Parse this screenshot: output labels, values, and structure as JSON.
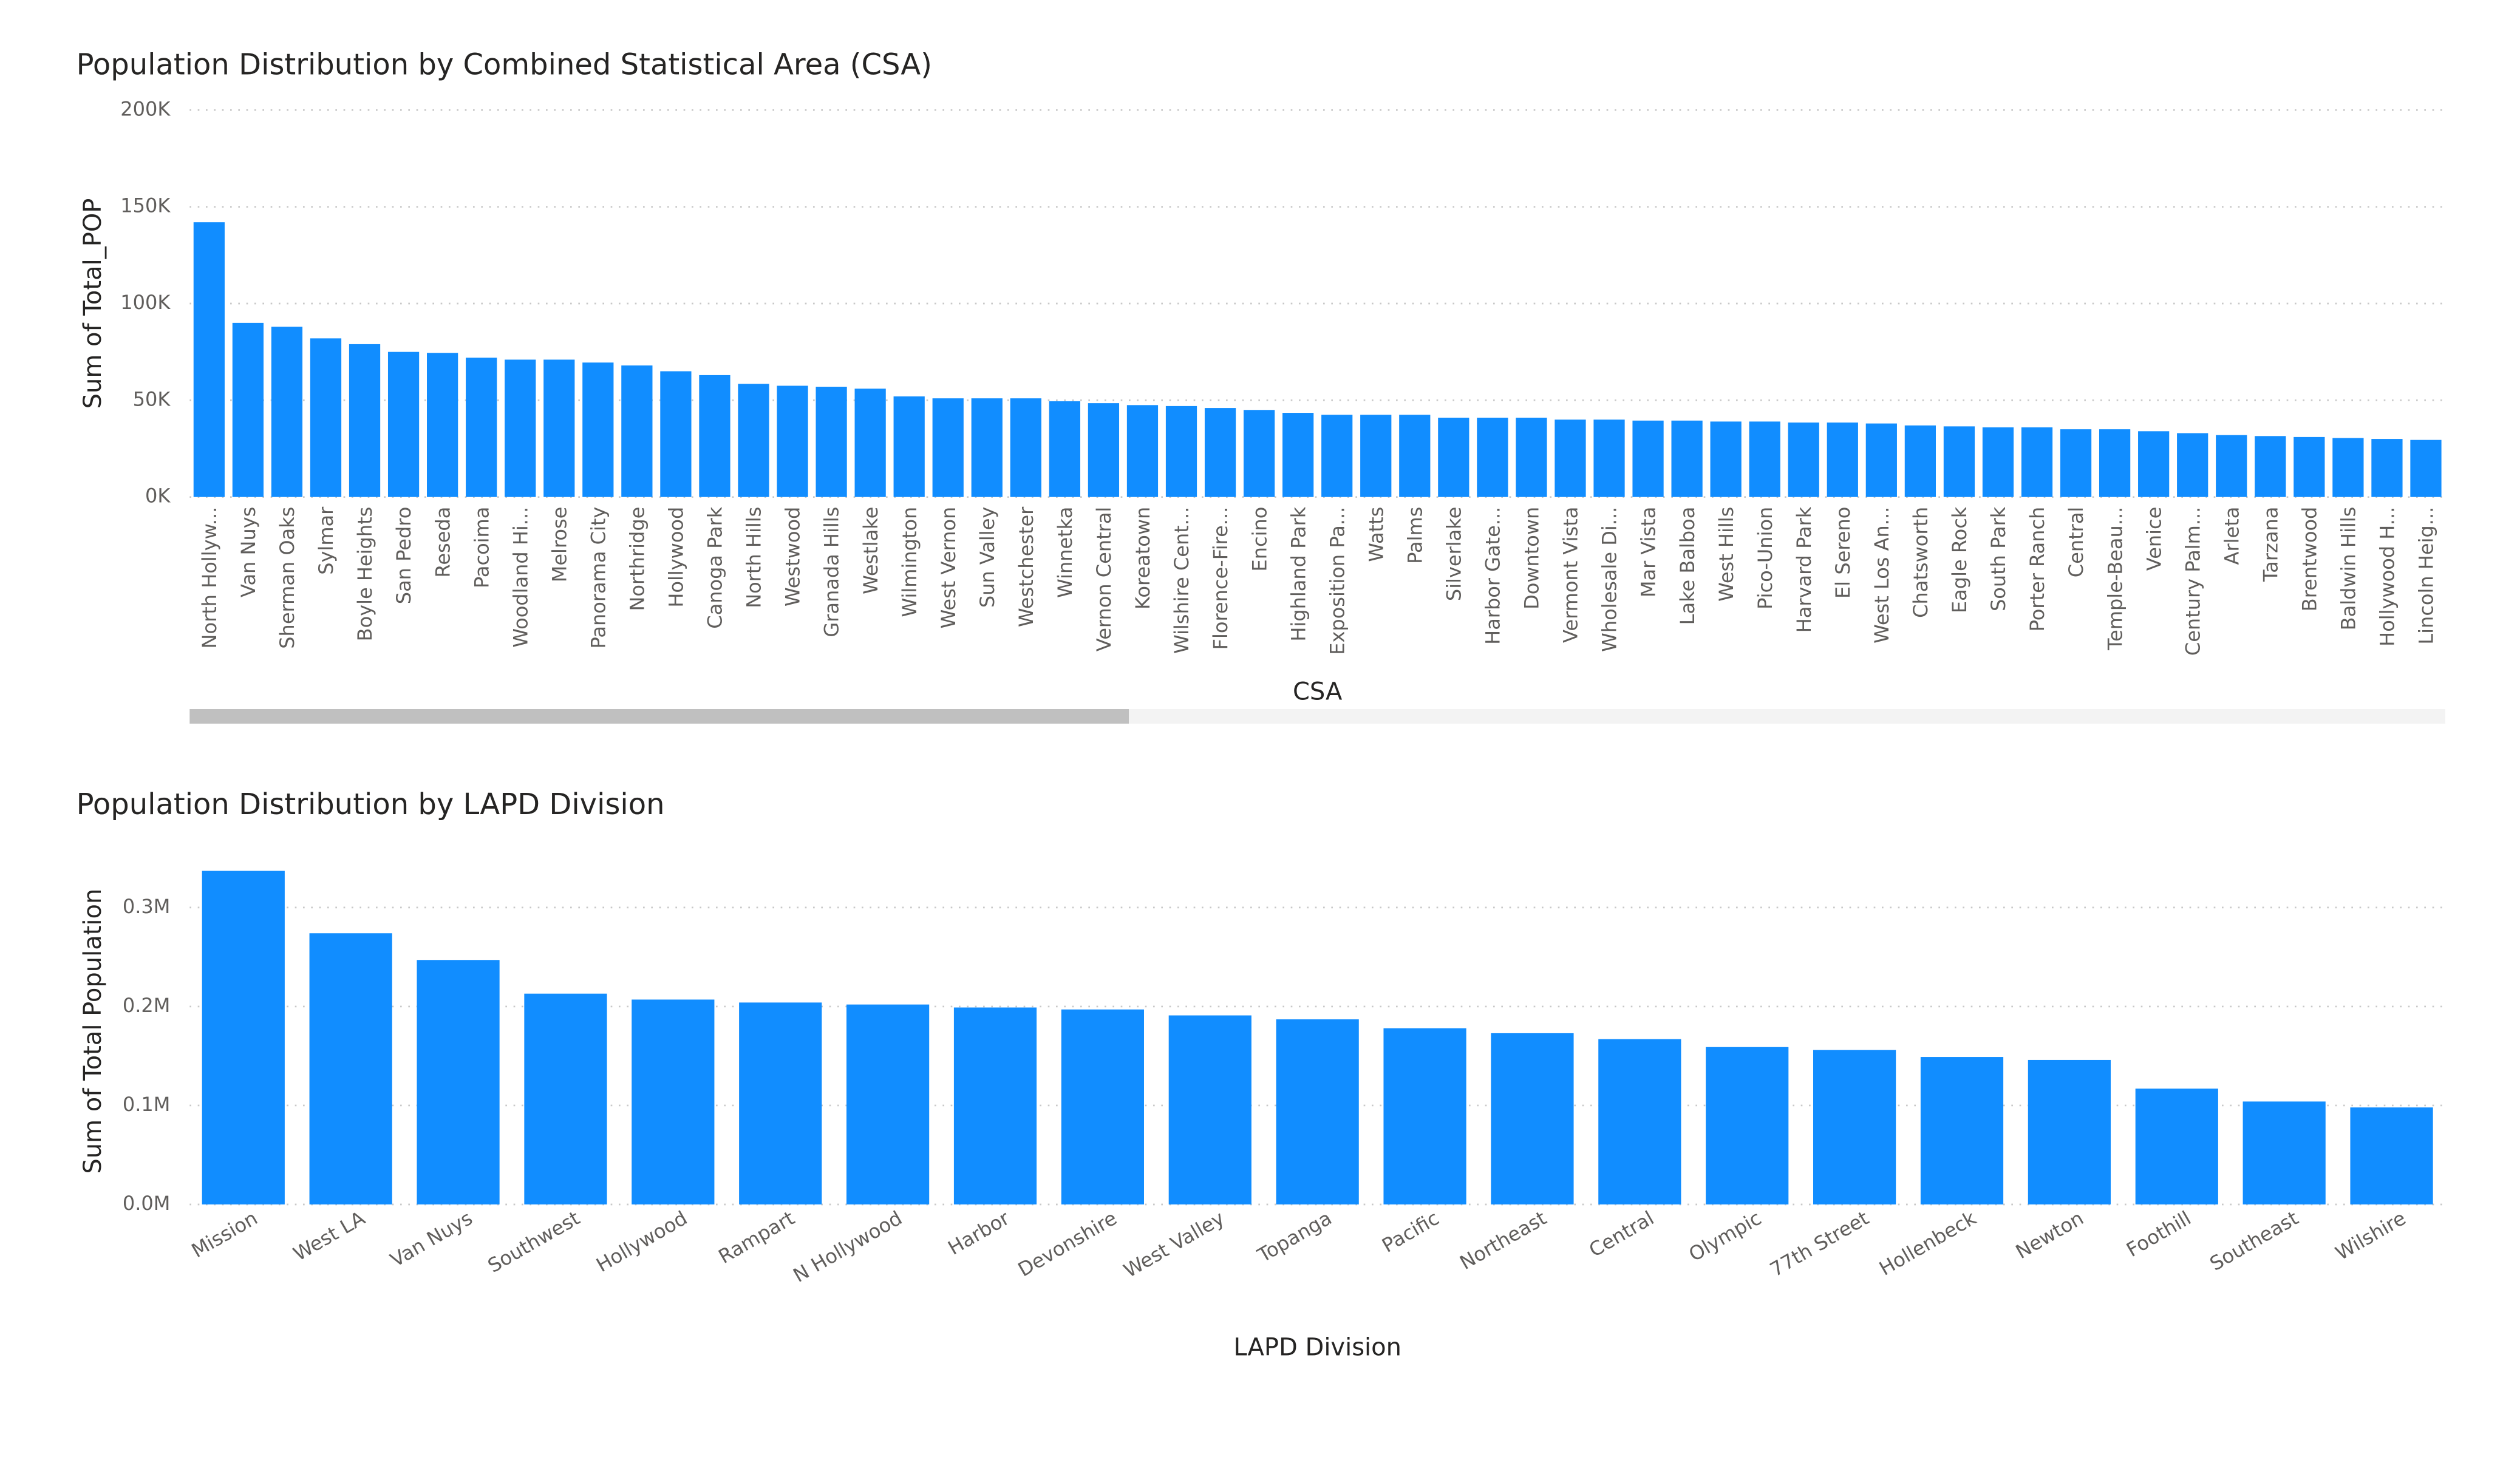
{
  "chart_data": [
    {
      "type": "bar",
      "title": "Population Distribution by Combined Statistical Area (CSA)",
      "x_label": "CSA",
      "y_label": "Sum of Total_POP",
      "color": "#118DFF",
      "grid": true,
      "categories": [
        "North Hollyw...",
        "Van Nuys",
        "Sherman Oaks",
        "Sylmar",
        "Boyle Heights",
        "San Pedro",
        "Reseda",
        "Pacoima",
        "Woodland Hi...",
        "Melrose",
        "Panorama City",
        "Northridge",
        "Hollywood",
        "Canoga Park",
        "North Hills",
        "Westwood",
        "Granada Hills",
        "Westlake",
        "Wilmington",
        "West Vernon",
        "Sun Valley",
        "Westchester",
        "Winnetka",
        "Vernon Central",
        "Koreatown",
        "Wilshire Cent...",
        "Florence-Fire...",
        "Encino",
        "Highland Park",
        "Exposition Pa...",
        "Watts",
        "Palms",
        "Silverlake",
        "Harbor Gate...",
        "Downtown",
        "Vermont Vista",
        "Wholesale Di...",
        "Mar Vista",
        "Lake Balboa",
        "West Hills",
        "Pico-Union",
        "Harvard Park",
        "El Sereno",
        "West Los An...",
        "Chatsworth",
        "Eagle Rock",
        "South Park",
        "Porter Ranch",
        "Central",
        "Temple-Beau...",
        "Venice",
        "Century Palm...",
        "Arleta",
        "Tarzana",
        "Brentwood",
        "Baldwin Hills",
        "Hollywood H...",
        "Lincoln Heig..."
      ],
      "values": [
        142000,
        90000,
        88000,
        82000,
        79000,
        75000,
        74500,
        72000,
        71000,
        71000,
        69500,
        68000,
        65000,
        63000,
        58500,
        57500,
        57000,
        56000,
        52000,
        51000,
        51000,
        51000,
        49500,
        48500,
        47500,
        47000,
        46000,
        45000,
        43500,
        42500,
        42500,
        42500,
        41000,
        41000,
        41000,
        40000,
        40000,
        39500,
        39500,
        39000,
        39000,
        38500,
        38500,
        38000,
        37000,
        36500,
        36000,
        36000,
        35000,
        35000,
        34000,
        33000,
        32000,
        31500,
        31000,
        30500,
        30000,
        29500
      ],
      "ylim": [
        0,
        200000
      ],
      "yticks": [
        {
          "value": 0,
          "label": "0K"
        },
        {
          "value": 50000,
          "label": "50K"
        },
        {
          "value": 100000,
          "label": "100K"
        },
        {
          "value": 150000,
          "label": "150K"
        },
        {
          "value": 200000,
          "label": "200K"
        }
      ]
    },
    {
      "type": "bar",
      "title": "Population Distribution by LAPD Division",
      "x_label": "LAPD Division",
      "y_label": "Sum of Total Population",
      "color": "#118DFF",
      "grid": true,
      "categories": [
        "Mission",
        "West LA",
        "Van Nuys",
        "Southwest",
        "Hollywood",
        "Rampart",
        "N Hollywood",
        "Harbor",
        "Devonshire",
        "West Valley",
        "Topanga",
        "Pacific",
        "Northeast",
        "Central",
        "Olympic",
        "77th Street",
        "Hollenbeck",
        "Newton",
        "Foothill",
        "Southeast",
        "Wilshire"
      ],
      "values": [
        337000,
        274000,
        247000,
        213000,
        207000,
        204000,
        202000,
        199000,
        197000,
        191000,
        187000,
        178000,
        173000,
        167000,
        159000,
        156000,
        149000,
        146000,
        117000,
        104000,
        98000
      ],
      "ylim": [
        0,
        350000
      ],
      "yticks": [
        {
          "value": 0,
          "label": "0.0M"
        },
        {
          "value": 100000,
          "label": "0.1M"
        },
        {
          "value": 200000,
          "label": "0.2M"
        },
        {
          "value": 300000,
          "label": "0.3M"
        }
      ]
    }
  ]
}
